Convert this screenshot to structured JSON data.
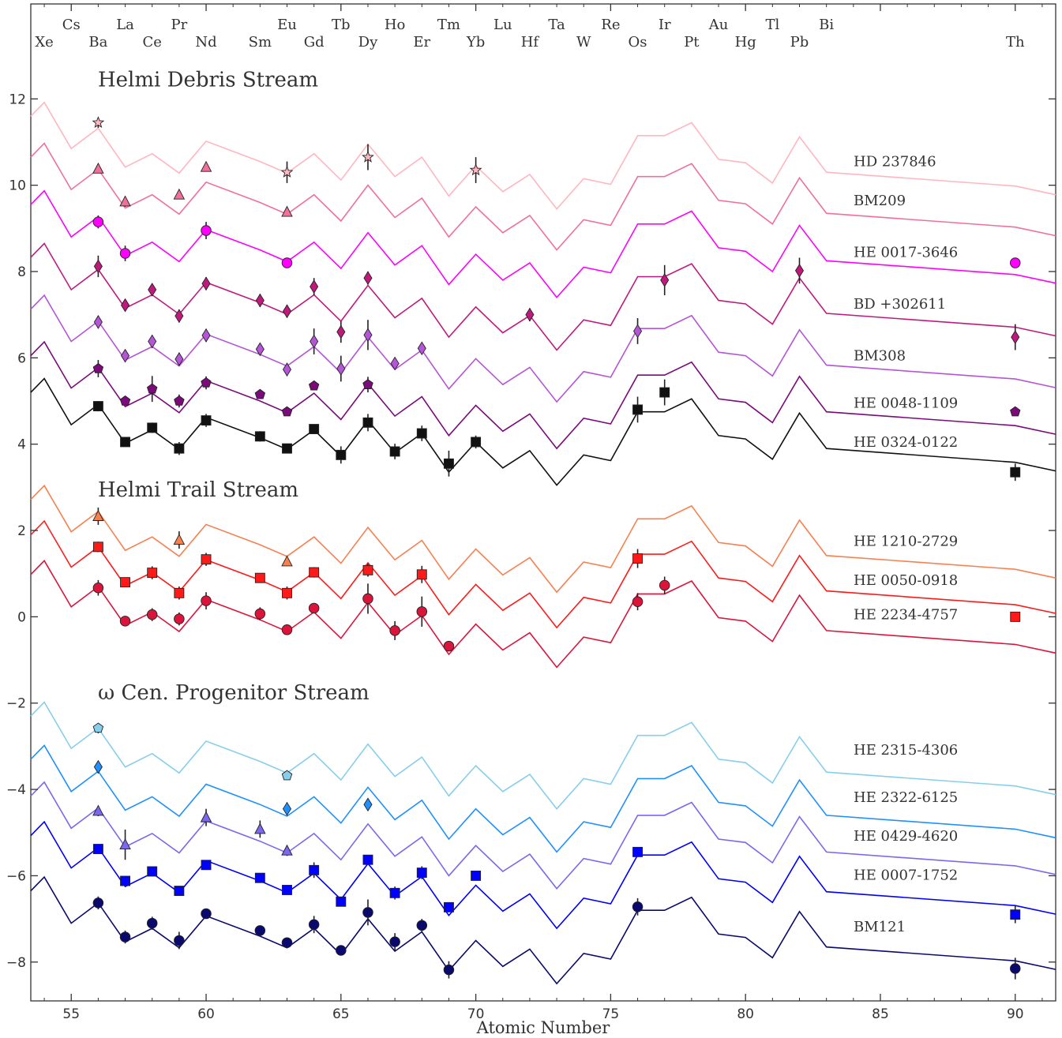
{
  "chart_data": {
    "type": "line",
    "xlabel": "Atomic Number",
    "ylabel": "",
    "xlim": [
      53.5,
      91.5
    ],
    "ylim": [
      -8.9,
      14.2
    ],
    "x_ticks": [
      55,
      60,
      65,
      70,
      75,
      80,
      85,
      90
    ],
    "y_ticks": [
      -8,
      -6,
      -4,
      -2,
      0,
      2,
      4,
      6,
      8,
      10,
      12
    ],
    "x_tick_labels": [
      "55",
      "60",
      "65",
      "70",
      "75",
      "80",
      "85",
      "90"
    ],
    "y_tick_labels": [
      "−8",
      "−6",
      "−4",
      "−2",
      "0",
      "2",
      "4",
      "6",
      "8",
      "10",
      "12"
    ],
    "grid": false,
    "elements": [
      {
        "z": 54,
        "sym": "Xe"
      },
      {
        "z": 55,
        "sym": "Cs"
      },
      {
        "z": 56,
        "sym": "Ba"
      },
      {
        "z": 57,
        "sym": "La"
      },
      {
        "z": 58,
        "sym": "Ce"
      },
      {
        "z": 59,
        "sym": "Pr"
      },
      {
        "z": 60,
        "sym": "Nd"
      },
      {
        "z": 62,
        "sym": "Sm"
      },
      {
        "z": 63,
        "sym": "Eu"
      },
      {
        "z": 64,
        "sym": "Gd"
      },
      {
        "z": 65,
        "sym": "Tb"
      },
      {
        "z": 66,
        "sym": "Dy"
      },
      {
        "z": 67,
        "sym": "Ho"
      },
      {
        "z": 68,
        "sym": "Er"
      },
      {
        "z": 69,
        "sym": "Tm"
      },
      {
        "z": 70,
        "sym": "Yb"
      },
      {
        "z": 71,
        "sym": "Lu"
      },
      {
        "z": 72,
        "sym": "Hf"
      },
      {
        "z": 73,
        "sym": "Ta"
      },
      {
        "z": 74,
        "sym": "W"
      },
      {
        "z": 75,
        "sym": "Re"
      },
      {
        "z": 76,
        "sym": "Os"
      },
      {
        "z": 77,
        "sym": "Ir"
      },
      {
        "z": 78,
        "sym": "Pt"
      },
      {
        "z": 79,
        "sym": "Au"
      },
      {
        "z": 80,
        "sym": "Hg"
      },
      {
        "z": 81,
        "sym": "Tl"
      },
      {
        "z": 82,
        "sym": "Pb"
      },
      {
        "z": 83,
        "sym": "Bi"
      },
      {
        "z": 90,
        "sym": "Th"
      }
    ],
    "panels": [
      {
        "title": "Helmi Debris Stream",
        "title_y": 12.45
      },
      {
        "title": "Helmi Trail Stream",
        "title_y": 2.95
      },
      {
        "title": "ω Cen. Progenitor Stream",
        "title_y": -1.75
      }
    ],
    "template_x": [
      53.5,
      54,
      55,
      56,
      57,
      58,
      59,
      60,
      62,
      63,
      64,
      65,
      66,
      67,
      68,
      69,
      70,
      71,
      72,
      73,
      74,
      75,
      76,
      77,
      78,
      79,
      80,
      81,
      82,
      83,
      90,
      91.5
    ],
    "template_y": [
      5.2,
      5.52,
      4.45,
      4.92,
      4.02,
      4.33,
      3.88,
      4.62,
      4.15,
      3.88,
      4.33,
      3.72,
      4.55,
      3.8,
      4.25,
      3.35,
      4.05,
      3.45,
      3.85,
      3.05,
      3.75,
      3.62,
      4.75,
      4.75,
      5.05,
      4.2,
      4.12,
      3.65,
      4.72,
      3.9,
      3.58,
      3.38
    ],
    "series": [
      {
        "name": "HD 237846",
        "color": "#ffb6c1",
        "offset": 6.4,
        "label_y": 10.55,
        "marker": "star",
        "points": [
          [
            56,
            11.45,
            0.12
          ],
          [
            63,
            10.3,
            0.25
          ],
          [
            66,
            10.65,
            0.3
          ],
          [
            70,
            10.35,
            0.3
          ]
        ]
      },
      {
        "name": "BM209",
        "color": "#f0709b",
        "offset": 5.45,
        "label_y": 9.65,
        "marker": "triangle",
        "points": [
          [
            56,
            10.38,
            0.1
          ],
          [
            57,
            9.62,
            0.12
          ],
          [
            59,
            9.78,
            0.1
          ],
          [
            60,
            10.42,
            0.08
          ],
          [
            63,
            9.38,
            0.08
          ]
        ]
      },
      {
        "name": "HE 0017-3646",
        "color": "#ff00ff",
        "offset": 4.35,
        "label_y": 8.45,
        "marker": "circle",
        "points": [
          [
            56,
            9.15,
            0.15
          ],
          [
            57,
            8.42,
            0.18
          ],
          [
            60,
            8.95,
            0.2
          ],
          [
            63,
            8.2,
            0.08
          ],
          [
            90,
            8.2,
            0.05
          ]
        ]
      },
      {
        "name": "BD +302611",
        "color": "#c0197e",
        "offset": 3.13,
        "label_y": 7.25,
        "marker": "diamond",
        "points": [
          [
            56,
            8.12,
            0.25
          ],
          [
            57,
            7.22,
            0.12
          ],
          [
            58,
            7.58,
            0.12
          ],
          [
            59,
            6.97,
            0.15
          ],
          [
            60,
            7.72,
            0.15
          ],
          [
            62,
            7.33,
            0.15
          ],
          [
            63,
            7.08,
            0.15
          ],
          [
            64,
            7.65,
            0.2
          ],
          [
            65,
            6.6,
            0.25
          ],
          [
            66,
            7.85,
            0.15
          ],
          [
            72,
            7.0,
            0.15
          ],
          [
            77,
            7.8,
            0.35
          ],
          [
            82,
            8.02,
            0.3
          ],
          [
            90,
            6.48,
            0.3
          ]
        ]
      },
      {
        "name": "BM308",
        "color": "#b455d6",
        "offset": 1.93,
        "label_y": 6.05,
        "marker": "diamond",
        "points": [
          [
            56,
            6.83,
            0.15
          ],
          [
            57,
            6.05,
            0.12
          ],
          [
            58,
            6.38,
            0.15
          ],
          [
            59,
            5.97,
            0.15
          ],
          [
            60,
            6.52,
            0.15
          ],
          [
            62,
            6.2,
            0.12
          ],
          [
            63,
            5.73,
            0.15
          ],
          [
            64,
            6.38,
            0.3
          ],
          [
            65,
            5.75,
            0.3
          ],
          [
            66,
            6.53,
            0.35
          ],
          [
            67,
            5.87,
            0.12
          ],
          [
            68,
            6.22,
            0.12
          ],
          [
            76,
            6.62,
            0.3
          ]
        ]
      },
      {
        "name": "HE 0048-1109",
        "color": "#7b0a7b",
        "offset": 0.85,
        "label_y": 4.95,
        "marker": "pentagon",
        "points": [
          [
            56,
            5.75,
            0.2
          ],
          [
            57,
            5.0,
            0.08
          ],
          [
            58,
            5.28,
            0.3
          ],
          [
            59,
            5.0,
            0.15
          ],
          [
            60,
            5.42,
            0.15
          ],
          [
            62,
            5.15,
            0.08
          ],
          [
            63,
            4.75,
            0.08
          ],
          [
            64,
            5.35,
            0.08
          ],
          [
            66,
            5.38,
            0.18
          ],
          [
            90,
            4.75,
            0.05
          ]
        ]
      },
      {
        "name": "HE 0324-0122",
        "color": "#111111",
        "offset": 0.0,
        "label_y": 4.05,
        "marker": "square",
        "points": [
          [
            56,
            4.88,
            0.12
          ],
          [
            57,
            4.05,
            0.1
          ],
          [
            58,
            4.38,
            0.12
          ],
          [
            59,
            3.9,
            0.15
          ],
          [
            60,
            4.55,
            0.15
          ],
          [
            62,
            4.18,
            0.12
          ],
          [
            63,
            3.9,
            0.08
          ],
          [
            64,
            4.35,
            0.08
          ],
          [
            65,
            3.75,
            0.2
          ],
          [
            66,
            4.5,
            0.2
          ],
          [
            67,
            3.83,
            0.18
          ],
          [
            68,
            4.25,
            0.18
          ],
          [
            69,
            3.55,
            0.3
          ],
          [
            70,
            4.05,
            0.15
          ],
          [
            76,
            4.8,
            0.3
          ],
          [
            77,
            5.2,
            0.3
          ],
          [
            90,
            3.35,
            0.2
          ]
        ]
      },
      {
        "name": "HE 1210-2729",
        "color": "#f7804f",
        "offset": -2.48,
        "label_y": 1.75,
        "marker": "triangle",
        "points": [
          [
            56,
            2.33,
            0.2
          ],
          [
            59,
            1.78,
            0.2
          ],
          [
            63,
            1.28,
            0.08
          ]
        ]
      },
      {
        "name": "HE 0050-0918",
        "color": "#ff1a1a",
        "offset": -3.3,
        "label_y": 0.85,
        "marker": "square",
        "points": [
          [
            56,
            1.62,
            0.12
          ],
          [
            57,
            0.8,
            0.1
          ],
          [
            58,
            1.02,
            0.15
          ],
          [
            59,
            0.55,
            0.15
          ],
          [
            60,
            1.33,
            0.15
          ],
          [
            62,
            0.9,
            0.1
          ],
          [
            63,
            0.55,
            0.15
          ],
          [
            64,
            1.03,
            0.12
          ],
          [
            66,
            1.08,
            0.15
          ],
          [
            68,
            0.98,
            0.2
          ],
          [
            76,
            1.35,
            0.22
          ],
          [
            90,
            0.0,
            0.05
          ]
        ]
      },
      {
        "name": "HE 2234-4757",
        "color": "#dc143c",
        "offset": -4.22,
        "label_y": 0.05,
        "marker": "circle",
        "points": [
          [
            56,
            0.67,
            0.18
          ],
          [
            57,
            -0.1,
            0.1
          ],
          [
            58,
            0.05,
            0.15
          ],
          [
            59,
            -0.05,
            0.15
          ],
          [
            60,
            0.37,
            0.2
          ],
          [
            62,
            0.07,
            0.15
          ],
          [
            63,
            -0.3,
            0.1
          ],
          [
            64,
            0.2,
            0.1
          ],
          [
            66,
            0.42,
            0.35
          ],
          [
            67,
            -0.32,
            0.22
          ],
          [
            68,
            0.12,
            0.35
          ],
          [
            69,
            -0.68,
            0.1
          ],
          [
            76,
            0.35,
            0.2
          ],
          [
            77,
            0.73,
            0.2
          ]
        ]
      },
      {
        "name": "HE 2315-4306",
        "color": "#87ceeb",
        "offset": -7.5,
        "label_y": -3.08,
        "marker": "pentagon",
        "points": [
          [
            56,
            -2.58,
            0.12
          ],
          [
            63,
            -3.68,
            0.1
          ]
        ]
      },
      {
        "name": "HE 2322-6125",
        "color": "#1e90ff",
        "offset": -8.5,
        "label_y": -4.18,
        "marker": "diamond",
        "points": [
          [
            56,
            -3.48,
            0.12
          ],
          [
            63,
            -4.45,
            0.15
          ],
          [
            66,
            -4.35,
            0.1
          ]
        ]
      },
      {
        "name": "HE 0429-4620",
        "color": "#7b68ee",
        "offset": -9.35,
        "label_y": -5.08,
        "marker": "triangle",
        "points": [
          [
            56,
            -4.5,
            0.12
          ],
          [
            57,
            -5.28,
            0.35
          ],
          [
            60,
            -4.65,
            0.2
          ],
          [
            62,
            -4.92,
            0.2
          ],
          [
            63,
            -5.42,
            0.12
          ]
        ]
      },
      {
        "name": "HE 0007-1752",
        "color": "#0000ff",
        "offset": -10.27,
        "label_y": -5.98,
        "marker": "square",
        "points": [
          [
            56,
            -5.38,
            0.1
          ],
          [
            57,
            -6.12,
            0.08
          ],
          [
            58,
            -5.9,
            0.1
          ],
          [
            59,
            -6.35,
            0.1
          ],
          [
            60,
            -5.75,
            0.1
          ],
          [
            62,
            -6.05,
            0.1
          ],
          [
            63,
            -6.33,
            0.1
          ],
          [
            64,
            -5.87,
            0.18
          ],
          [
            65,
            -6.6,
            0.1
          ],
          [
            66,
            -5.63,
            0.08
          ],
          [
            67,
            -6.4,
            0.15
          ],
          [
            68,
            -5.93,
            0.15
          ],
          [
            69,
            -6.73,
            0.1
          ],
          [
            70,
            -6.0,
            0.1
          ],
          [
            76,
            -5.45,
            0.1
          ],
          [
            90,
            -6.9,
            0.2
          ]
        ]
      },
      {
        "name": "BM121",
        "color": "#0a0a6e",
        "offset": -11.55,
        "label_y": -7.18,
        "marker": "circle",
        "points": [
          [
            56,
            -6.63,
            0.15
          ],
          [
            57,
            -7.42,
            0.15
          ],
          [
            58,
            -7.1,
            0.15
          ],
          [
            59,
            -7.5,
            0.2
          ],
          [
            60,
            -6.88,
            0.1
          ],
          [
            62,
            -7.27,
            0.1
          ],
          [
            63,
            -7.55,
            0.1
          ],
          [
            64,
            -7.13,
            0.2
          ],
          [
            65,
            -7.73,
            0.1
          ],
          [
            66,
            -6.85,
            0.3
          ],
          [
            67,
            -7.53,
            0.2
          ],
          [
            68,
            -7.15,
            0.15
          ],
          [
            69,
            -8.18,
            0.2
          ],
          [
            76,
            -6.72,
            0.2
          ],
          [
            90,
            -8.15,
            0.25
          ]
        ]
      }
    ]
  }
}
